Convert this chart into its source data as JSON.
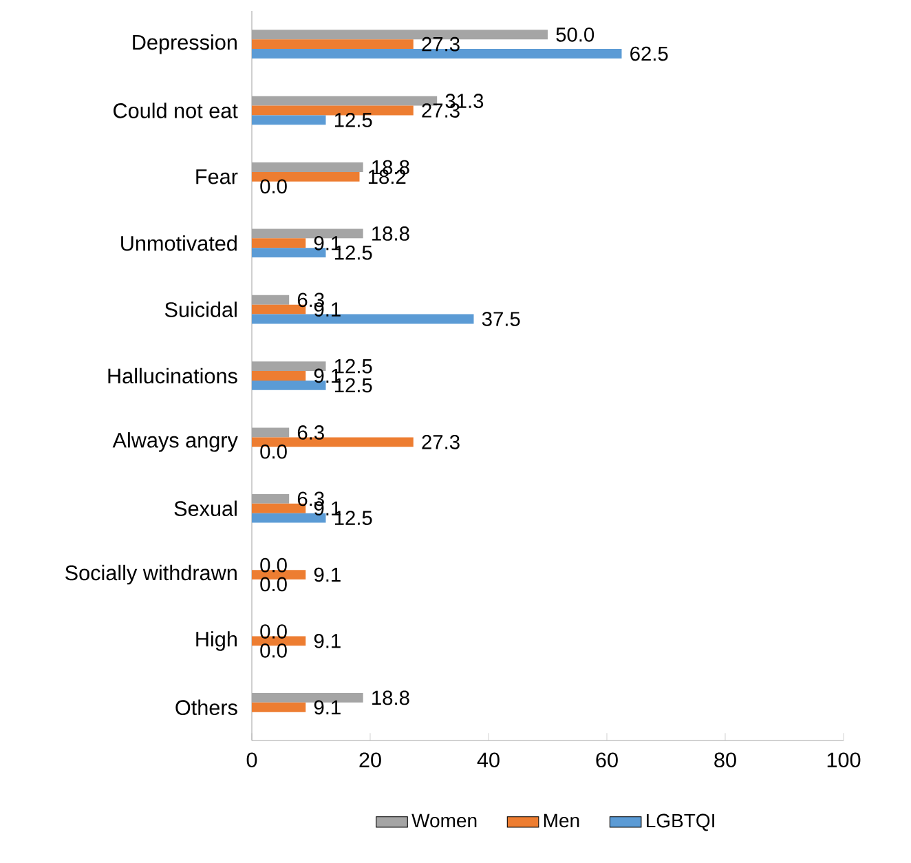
{
  "chart_data": {
    "type": "bar",
    "orientation": "horizontal",
    "categories": [
      "Depression",
      "Could not eat",
      "Fear",
      "Unmotivated",
      "Suicidal",
      "Hallucinations",
      "Always angry",
      "Sexual",
      "Socially withdrawn",
      "High",
      "Others"
    ],
    "series": [
      {
        "name": "Women",
        "color": "#a5a5a5",
        "values": [
          50.0,
          31.3,
          18.8,
          18.8,
          6.3,
          12.5,
          6.3,
          6.3,
          0.0,
          0.0,
          18.8
        ],
        "value_labels": [
          "50.0",
          "31.3",
          "18.8",
          "18.8",
          "6.3",
          "12.5",
          "6.3",
          "6.3",
          "0.0",
          "0.0",
          "18.8"
        ]
      },
      {
        "name": "Men",
        "color": "#ed7d31",
        "values": [
          27.3,
          27.3,
          18.2,
          9.1,
          9.1,
          9.1,
          27.3,
          9.1,
          9.1,
          9.1,
          9.1
        ],
        "value_labels": [
          "27.3",
          "27.3",
          "18.2",
          "9.1",
          "9.1",
          "9.1",
          "27.3",
          "9.1",
          "9.1",
          "9.1",
          "9.1"
        ]
      },
      {
        "name": "LGBTQI",
        "color": "#5b9bd5",
        "values": [
          62.5,
          12.5,
          0.0,
          12.5,
          37.5,
          12.5,
          0.0,
          12.5,
          0.0,
          0.0,
          null
        ],
        "value_labels": [
          "62.5",
          "12.5",
          "0.0",
          "12.5",
          "37.5",
          "12.5",
          "0.0",
          "12.5",
          "0.0",
          "0.0",
          null
        ]
      }
    ],
    "xlim": [
      0,
      100
    ],
    "xticks": [
      0,
      20,
      40,
      60,
      80,
      100
    ],
    "grid": false,
    "legend": "bottom"
  }
}
